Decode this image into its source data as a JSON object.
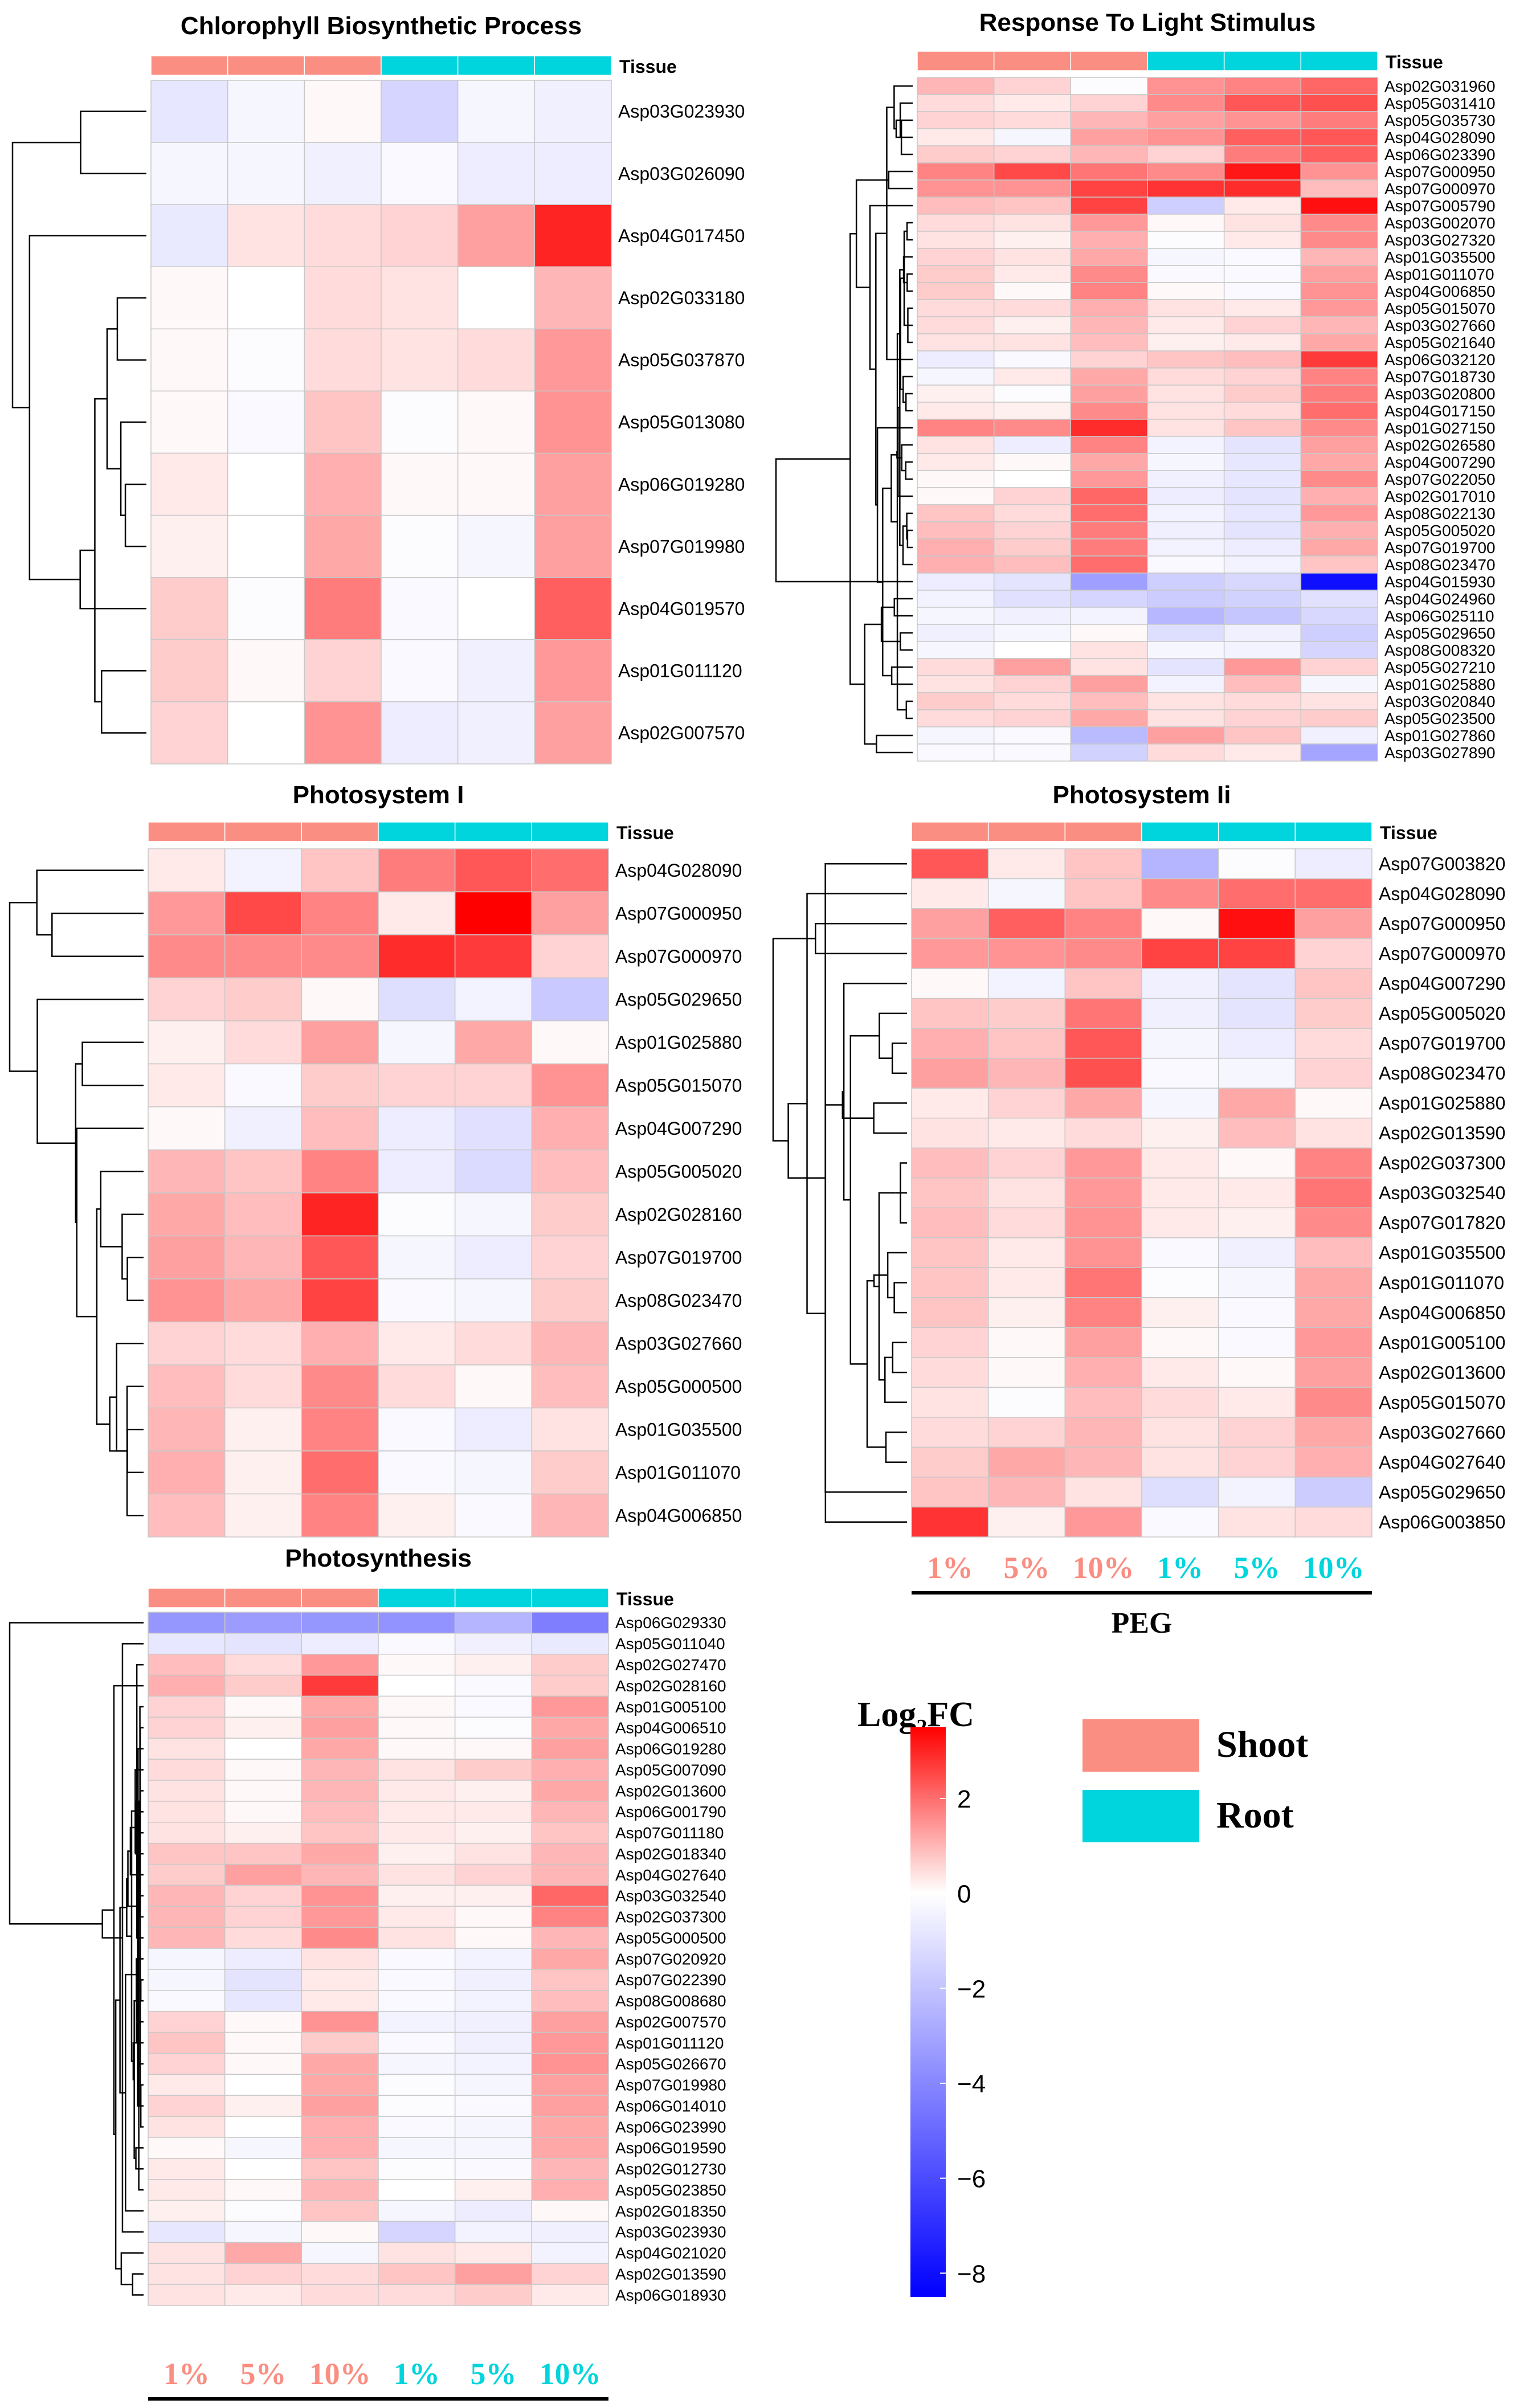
{
  "colors": {
    "shoot": "#FA8E82",
    "root": "#00D4DC",
    "high": "#FF0000",
    "mid": "#FFFFFF",
    "low": "#0000FF",
    "grid": "#C8C8C8",
    "text": "#000000"
  },
  "tissue_label": "Tissue",
  "legend": {
    "title": "Log",
    "title_sub": "2",
    "title_suffix": "FC",
    "ticks": [
      2,
      0,
      -2,
      -4,
      -6,
      -8
    ],
    "tick_labels": [
      "2",
      "0",
      "−2",
      "−4",
      "−6",
      "−8"
    ],
    "range": [
      -8.5,
      3.5
    ],
    "tissue_entries": [
      {
        "label": "Shoot",
        "color": "#FA8E82"
      },
      {
        "label": "Root",
        "color": "#00D4DC"
      }
    ]
  },
  "conditions": [
    "1%",
    "5%",
    "10%",
    "1%",
    "5%",
    "10%"
  ],
  "condition_tissue": [
    "shoot",
    "shoot",
    "shoot",
    "root",
    "root",
    "root"
  ],
  "peg_label": "PEG",
  "chart_data": [
    {
      "type": "heatmap",
      "title": "Chlorophyll Biosynthetic Process",
      "columns": [
        "1%",
        "5%",
        "10%",
        "1%",
        "5%",
        "10%"
      ],
      "column_tissue": [
        "Shoot",
        "Shoot",
        "Shoot",
        "Root",
        "Root",
        "Root"
      ],
      "rows": [
        "Asp03G023930",
        "Asp03G026090",
        "Asp04G017450",
        "Asp02G033180",
        "Asp05G037870",
        "Asp05G013080",
        "Asp06G019280",
        "Asp07G019980",
        "Asp04G019570",
        "Asp01G011120",
        "Asp02G007570"
      ],
      "values": [
        [
          -0.8,
          -0.3,
          0.1,
          -1.4,
          -0.3,
          -0.5
        ],
        [
          -0.3,
          -0.3,
          -0.5,
          -0.2,
          -0.6,
          -0.6
        ],
        [
          -0.7,
          0.4,
          0.5,
          0.6,
          1.3,
          3.0
        ],
        [
          0.1,
          0.0,
          0.5,
          0.4,
          0.0,
          1.0
        ],
        [
          0.1,
          -0.1,
          0.5,
          0.4,
          0.5,
          1.4
        ],
        [
          0.1,
          -0.2,
          0.8,
          -0.1,
          0.1,
          1.5
        ],
        [
          0.3,
          0.0,
          1.1,
          0.1,
          0.1,
          1.3
        ],
        [
          0.2,
          0.0,
          1.2,
          -0.1,
          -0.3,
          1.3
        ],
        [
          0.7,
          -0.1,
          1.8,
          -0.2,
          0.0,
          2.2
        ],
        [
          0.7,
          0.1,
          0.6,
          -0.2,
          -0.5,
          1.4
        ],
        [
          0.6,
          0.0,
          1.5,
          -0.6,
          -0.5,
          1.3
        ]
      ],
      "color_scale": "Log2FC"
    },
    {
      "type": "heatmap",
      "title": "Response To Light Stimulus",
      "columns": [
        "1%",
        "5%",
        "10%",
        "1%",
        "5%",
        "10%"
      ],
      "column_tissue": [
        "Shoot",
        "Shoot",
        "Shoot",
        "Root",
        "Root",
        "Root"
      ],
      "rows": [
        "Asp02G031960",
        "Asp05G031410",
        "Asp05G035730",
        "Asp04G028090",
        "Asp06G023390",
        "Asp07G000950",
        "Asp07G000970",
        "Asp07G005790",
        "Asp03G002070",
        "Asp03G027320",
        "Asp01G035500",
        "Asp01G011070",
        "Asp04G006850",
        "Asp05G015070",
        "Asp03G027660",
        "Asp05G021640",
        "Asp06G032120",
        "Asp07G018730",
        "Asp03G020800",
        "Asp04G017150",
        "Asp01G027150",
        "Asp02G026580",
        "Asp04G007290",
        "Asp07G022050",
        "Asp02G017010",
        "Asp08G022130",
        "Asp05G005020",
        "Asp07G019700",
        "Asp08G023470",
        "Asp04G015930",
        "Asp04G024960",
        "Asp06G025110",
        "Asp05G029650",
        "Asp08G008320",
        "Asp05G027210",
        "Asp01G025880",
        "Asp03G020840",
        "Asp05G023500",
        "Asp01G027860",
        "Asp03G027890"
      ],
      "values": [
        [
          1.0,
          0.6,
          -0.1,
          1.5,
          1.7,
          2.1
        ],
        [
          0.5,
          0.3,
          0.6,
          1.6,
          2.3,
          2.4
        ],
        [
          0.6,
          0.5,
          1.0,
          1.3,
          1.5,
          1.8
        ],
        [
          0.3,
          -0.3,
          1.3,
          1.5,
          2.2,
          2.3
        ],
        [
          0.7,
          0.6,
          1.0,
          0.6,
          1.8,
          2.2
        ],
        [
          1.7,
          2.5,
          1.9,
          1.6,
          3.2,
          1.5
        ],
        [
          1.5,
          1.5,
          2.6,
          2.8,
          2.9,
          0.9
        ],
        [
          0.9,
          0.8,
          2.6,
          -1.6,
          0.3,
          3.3
        ],
        [
          0.5,
          0.4,
          1.4,
          0.1,
          0.4,
          1.6
        ],
        [
          0.4,
          0.2,
          1.1,
          -0.1,
          0.3,
          1.6
        ],
        [
          0.6,
          0.4,
          1.2,
          -0.3,
          -0.2,
          1.0
        ],
        [
          0.7,
          0.3,
          1.6,
          -0.2,
          -0.2,
          1.3
        ],
        [
          0.7,
          0.1,
          1.7,
          0.1,
          -0.2,
          1.5
        ],
        [
          0.5,
          0.5,
          1.1,
          0.4,
          0.3,
          1.4
        ],
        [
          0.5,
          0.2,
          1.0,
          0.3,
          0.6,
          1.0
        ],
        [
          0.4,
          0.4,
          0.9,
          0.2,
          0.3,
          1.2
        ],
        [
          -0.6,
          -0.2,
          0.6,
          0.8,
          0.9,
          2.7
        ],
        [
          -0.3,
          0.3,
          1.2,
          0.5,
          0.6,
          1.7
        ],
        [
          0.2,
          -0.1,
          1.3,
          0.4,
          0.7,
          1.8
        ],
        [
          0.3,
          0.2,
          1.6,
          0.4,
          0.5,
          2.0
        ],
        [
          1.7,
          1.6,
          2.9,
          0.4,
          0.8,
          1.6
        ],
        [
          0.4,
          -0.6,
          1.7,
          -0.4,
          -0.9,
          1.3
        ],
        [
          0.3,
          0.1,
          1.2,
          -0.3,
          -0.8,
          1.2
        ],
        [
          0.1,
          0.0,
          1.4,
          -0.5,
          -0.8,
          1.6
        ],
        [
          0.1,
          0.6,
          2.1,
          -0.6,
          -0.9,
          1.1
        ],
        [
          0.8,
          0.5,
          2.0,
          -0.4,
          -0.8,
          1.4
        ],
        [
          0.9,
          0.6,
          1.8,
          -0.5,
          -0.9,
          1.1
        ],
        [
          1.1,
          0.7,
          1.8,
          -0.4,
          -0.6,
          1.2
        ],
        [
          1.1,
          0.9,
          2.0,
          -0.2,
          -0.4,
          0.8
        ],
        [
          -0.6,
          -0.9,
          -3.2,
          -1.6,
          -1.3,
          -8.0
        ],
        [
          -0.4,
          -1.0,
          -1.4,
          -1.7,
          -1.5,
          -1.0
        ],
        [
          -0.3,
          -0.5,
          -0.4,
          -2.4,
          -1.9,
          -1.3
        ],
        [
          -0.5,
          -0.3,
          0.1,
          -1.1,
          -0.5,
          -1.6
        ],
        [
          -0.3,
          0.0,
          0.4,
          -0.3,
          -0.4,
          -1.4
        ],
        [
          0.5,
          1.3,
          0.4,
          -0.9,
          1.4,
          0.6
        ],
        [
          0.4,
          0.6,
          1.3,
          -0.4,
          0.9,
          -0.3
        ],
        [
          0.7,
          0.5,
          0.9,
          0.4,
          0.5,
          0.4
        ],
        [
          0.5,
          0.6,
          1.2,
          0.4,
          0.6,
          0.7
        ],
        [
          -0.3,
          -0.2,
          -2.3,
          1.3,
          0.8,
          -0.5
        ],
        [
          -0.2,
          -0.2,
          -1.5,
          0.5,
          0.3,
          -3.0
        ]
      ],
      "color_scale": "Log2FC"
    },
    {
      "type": "heatmap",
      "title": "Photosystem I",
      "columns": [
        "1%",
        "5%",
        "10%",
        "1%",
        "5%",
        "10%"
      ],
      "column_tissue": [
        "Shoot",
        "Shoot",
        "Shoot",
        "Root",
        "Root",
        "Root"
      ],
      "rows": [
        "Asp04G028090",
        "Asp07G000950",
        "Asp07G000970",
        "Asp05G029650",
        "Asp01G025880",
        "Asp05G015070",
        "Asp04G007290",
        "Asp05G005020",
        "Asp02G028160",
        "Asp07G019700",
        "Asp08G023470",
        "Asp03G027660",
        "Asp05G000500",
        "Asp01G035500",
        "Asp01G011070",
        "Asp04G006850"
      ],
      "values": [
        [
          0.3,
          -0.4,
          0.8,
          1.8,
          2.3,
          2.0
        ],
        [
          1.4,
          2.5,
          1.7,
          0.3,
          3.6,
          1.3
        ],
        [
          1.6,
          1.6,
          1.6,
          2.9,
          2.7,
          0.6
        ],
        [
          0.6,
          0.7,
          0.1,
          -1.1,
          -0.4,
          -1.8
        ],
        [
          0.2,
          0.5,
          1.3,
          -0.3,
          1.2,
          0.1
        ],
        [
          0.3,
          -0.2,
          0.7,
          0.6,
          0.6,
          1.5
        ],
        [
          0.1,
          -0.5,
          0.9,
          -0.6,
          -1.0,
          1.1
        ],
        [
          1.0,
          0.8,
          1.7,
          -0.6,
          -1.2,
          0.9
        ],
        [
          1.2,
          0.9,
          3.0,
          -0.1,
          -0.3,
          0.7
        ],
        [
          1.3,
          1.0,
          2.3,
          -0.3,
          -0.6,
          0.6
        ],
        [
          1.5,
          1.2,
          2.6,
          -0.2,
          -0.3,
          0.7
        ],
        [
          0.6,
          0.5,
          1.1,
          0.3,
          0.5,
          1.0
        ],
        [
          0.9,
          0.5,
          1.6,
          0.5,
          0.1,
          0.9
        ],
        [
          1.0,
          0.2,
          1.7,
          -0.2,
          -0.6,
          0.4
        ],
        [
          1.1,
          0.2,
          2.0,
          -0.2,
          -0.3,
          0.7
        ],
        [
          0.9,
          0.2,
          1.7,
          0.2,
          -0.2,
          1.0
        ]
      ],
      "color_scale": "Log2FC"
    },
    {
      "type": "heatmap",
      "title": "Photosystem Ii",
      "columns": [
        "1%",
        "5%",
        "10%",
        "1%",
        "5%",
        "10%"
      ],
      "column_tissue": [
        "Shoot",
        "Shoot",
        "Shoot",
        "Root",
        "Root",
        "Root"
      ],
      "rows": [
        "Asp07G003820",
        "Asp04G028090",
        "Asp07G000950",
        "Asp07G000970",
        "Asp04G007290",
        "Asp05G005020",
        "Asp07G019700",
        "Asp08G023470",
        "Asp01G025880",
        "Asp02G013590",
        "Asp02G037300",
        "Asp03G032540",
        "Asp07G017820",
        "Asp01G035500",
        "Asp01G011070",
        "Asp04G006850",
        "Asp01G005100",
        "Asp02G013600",
        "Asp05G015070",
        "Asp03G027660",
        "Asp04G027640",
        "Asp05G029650",
        "Asp06G003850"
      ],
      "values": [
        [
          2.3,
          0.3,
          0.8,
          -2.5,
          -0.1,
          -0.6
        ],
        [
          0.3,
          -0.3,
          0.8,
          1.6,
          2.0,
          2.0
        ],
        [
          1.3,
          2.2,
          1.7,
          0.1,
          3.3,
          1.3
        ],
        [
          1.4,
          1.5,
          1.6,
          2.6,
          2.6,
          0.6
        ],
        [
          0.1,
          -0.4,
          0.8,
          -0.5,
          -0.9,
          0.8
        ],
        [
          0.8,
          0.7,
          1.9,
          -0.5,
          -0.9,
          0.7
        ],
        [
          1.1,
          0.8,
          2.3,
          -0.3,
          -0.6,
          0.5
        ],
        [
          1.3,
          1.0,
          2.4,
          -0.2,
          -0.3,
          0.6
        ],
        [
          0.3,
          0.6,
          1.2,
          -0.3,
          1.2,
          0.1
        ],
        [
          0.4,
          0.3,
          0.5,
          0.2,
          0.9,
          0.4
        ],
        [
          0.9,
          0.6,
          1.4,
          0.3,
          0.1,
          1.7
        ],
        [
          0.8,
          0.4,
          1.4,
          0.3,
          0.3,
          1.9
        ],
        [
          0.9,
          0.5,
          1.5,
          0.3,
          0.2,
          1.6
        ],
        [
          0.8,
          0.3,
          1.5,
          -0.2,
          -0.5,
          0.9
        ],
        [
          0.8,
          0.3,
          1.9,
          -0.1,
          -0.3,
          1.2
        ],
        [
          0.8,
          0.2,
          1.7,
          0.2,
          -0.2,
          1.2
        ],
        [
          0.6,
          0.1,
          1.3,
          0.1,
          -0.2,
          1.4
        ],
        [
          0.5,
          0.1,
          1.1,
          0.3,
          0.1,
          1.3
        ],
        [
          0.4,
          -0.1,
          0.9,
          0.5,
          0.3,
          1.6
        ],
        [
          0.5,
          0.6,
          1.0,
          0.4,
          0.6,
          1.2
        ],
        [
          0.7,
          1.2,
          1.0,
          0.4,
          0.6,
          1.1
        ],
        [
          0.8,
          1.0,
          0.4,
          -1.1,
          -0.4,
          -1.7
        ],
        [
          2.8,
          0.2,
          1.4,
          -0.2,
          0.4,
          0.5
        ]
      ],
      "color_scale": "Log2FC"
    },
    {
      "type": "heatmap",
      "title": "Photosynthesis",
      "columns": [
        "1%",
        "5%",
        "10%",
        "1%",
        "5%",
        "10%"
      ],
      "column_tissue": [
        "Shoot",
        "Shoot",
        "Shoot",
        "Root",
        "Root",
        "Root"
      ],
      "rows": [
        "Asp06G029330",
        "Asp05G011040",
        "Asp02G027470",
        "Asp02G028160",
        "Asp01G005100",
        "Asp04G006510",
        "Asp06G019280",
        "Asp05G007090",
        "Asp02G013600",
        "Asp06G001790",
        "Asp07G011180",
        "Asp02G018340",
        "Asp04G027640",
        "Asp03G032540",
        "Asp02G037300",
        "Asp05G000500",
        "Asp07G020920",
        "Asp07G022390",
        "Asp08G008680",
        "Asp02G007570",
        "Asp01G011120",
        "Asp05G026670",
        "Asp07G019980",
        "Asp06G014010",
        "Asp06G023990",
        "Asp06G019590",
        "Asp02G012730",
        "Asp05G023850",
        "Asp02G018350",
        "Asp03G023930",
        "Asp04G021020",
        "Asp02G013590",
        "Asp06G018930"
      ],
      "values": [
        [
          -3.5,
          -3.3,
          -3.5,
          -3.6,
          -2.5,
          -4.3
        ],
        [
          -0.8,
          -0.9,
          -0.6,
          -0.2,
          -0.5,
          -0.7
        ],
        [
          0.9,
          0.5,
          1.4,
          0.1,
          0.2,
          0.7
        ],
        [
          1.1,
          0.7,
          2.7,
          0.0,
          -0.2,
          0.7
        ],
        [
          0.6,
          0.1,
          1.2,
          0.1,
          -0.2,
          1.4
        ],
        [
          0.6,
          0.2,
          1.3,
          0.1,
          -0.1,
          1.2
        ],
        [
          0.4,
          0.0,
          1.2,
          0.1,
          0.1,
          1.3
        ],
        [
          0.5,
          0.1,
          1.0,
          0.4,
          0.7,
          1.1
        ],
        [
          0.4,
          0.1,
          1.0,
          0.3,
          0.2,
          1.2
        ],
        [
          0.4,
          0.1,
          0.9,
          0.3,
          0.3,
          1.0
        ],
        [
          0.4,
          0.2,
          0.8,
          0.3,
          0.2,
          0.8
        ],
        [
          0.8,
          0.8,
          1.2,
          0.2,
          0.4,
          1.0
        ],
        [
          0.7,
          1.3,
          1.0,
          0.4,
          0.6,
          1.0
        ],
        [
          1.0,
          0.6,
          1.5,
          0.2,
          0.2,
          2.1
        ],
        [
          1.0,
          0.6,
          1.4,
          0.3,
          0.1,
          1.7
        ],
        [
          1.0,
          0.5,
          1.6,
          0.4,
          0.1,
          1.0
        ],
        [
          -0.3,
          -0.6,
          0.4,
          -0.2,
          -0.4,
          1.2
        ],
        [
          -0.3,
          -0.9,
          0.3,
          -0.2,
          -0.5,
          0.8
        ],
        [
          -0.2,
          -0.8,
          0.3,
          -0.2,
          -0.4,
          0.9
        ],
        [
          0.6,
          0.1,
          1.5,
          -0.4,
          -0.5,
          1.3
        ],
        [
          0.8,
          0.1,
          0.7,
          -0.2,
          -0.5,
          1.4
        ],
        [
          0.6,
          0.1,
          1.2,
          -0.3,
          -0.4,
          1.5
        ],
        [
          0.3,
          0.0,
          1.2,
          -0.1,
          -0.3,
          1.3
        ],
        [
          0.6,
          0.2,
          1.3,
          -0.1,
          -0.2,
          1.3
        ],
        [
          0.4,
          0.0,
          1.1,
          -0.2,
          -0.3,
          1.2
        ],
        [
          0.1,
          -0.3,
          1.1,
          -0.3,
          -0.3,
          1.2
        ],
        [
          0.3,
          0.0,
          0.8,
          -0.1,
          -0.2,
          1.0
        ],
        [
          0.3,
          0.1,
          1.0,
          0.0,
          0.2,
          1.1
        ],
        [
          0.2,
          -0.1,
          0.8,
          -0.3,
          -0.6,
          0.1
        ],
        [
          -0.8,
          -0.3,
          0.1,
          -1.4,
          -0.4,
          -0.5
        ],
        [
          0.4,
          1.2,
          -0.3,
          0.4,
          0.3,
          -0.4
        ],
        [
          0.4,
          0.6,
          0.5,
          0.8,
          1.3,
          0.6
        ],
        [
          0.4,
          0.3,
          0.5,
          0.5,
          0.7,
          0.3
        ]
      ],
      "color_scale": "Log2FC"
    }
  ]
}
